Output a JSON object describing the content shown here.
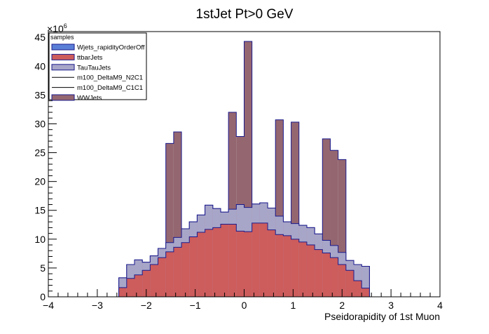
{
  "chart_data": {
    "type": "histogram",
    "title": "1stJet Pt>0 GeV",
    "xlabel": "Pseidorapidity of 1st Muon",
    "ylabel": "",
    "y_multiplier_label": "×10",
    "y_multiplier_exponent": "6",
    "xlim": [
      -4,
      4
    ],
    "ylim": [
      0,
      46
    ],
    "bin_width": 0.16,
    "xticks": [
      -4,
      -3,
      -2,
      -1,
      0,
      1,
      2,
      3,
      4
    ],
    "yticks": [
      0,
      5,
      10,
      15,
      20,
      25,
      30,
      35,
      40,
      45
    ],
    "legend": {
      "title": "samples",
      "placement": "top-left",
      "entries": [
        {
          "label": "Wjets_rapidityOrderOff",
          "style": "fill",
          "color": "#5a7fd6"
        },
        {
          "label": "ttbarJets",
          "style": "fill",
          "color": "#cd5c5c"
        },
        {
          "label": "TauTauJets",
          "style": "fill",
          "color": "#a8a6c8"
        },
        {
          "label": "m100_DeltaM9_N2C1",
          "style": "line",
          "color": "#000000"
        },
        {
          "label": "m100_DeltaM9_C1C1",
          "style": "line",
          "color": "#000000"
        },
        {
          "label": "WWJets",
          "style": "fill",
          "color": "#946670"
        }
      ]
    },
    "bin_edges": [
      -2.56,
      -2.4,
      -2.24,
      -2.08,
      -1.92,
      -1.76,
      -1.6,
      -1.44,
      -1.28,
      -1.12,
      -0.96,
      -0.8,
      -0.64,
      -0.48,
      -0.32,
      -0.16,
      0.0,
      0.16,
      0.32,
      0.48,
      0.64,
      0.8,
      0.96,
      1.12,
      1.28,
      1.44,
      1.6,
      1.76,
      1.92,
      2.08,
      2.24,
      2.4,
      2.56
    ],
    "series": [
      {
        "name": "ttbarJets",
        "color": "#cd5c5c",
        "values": [
          1.6,
          3.2,
          3.8,
          4.6,
          5.6,
          6.8,
          7.8,
          8.6,
          9.4,
          10.4,
          11.2,
          11.7,
          12.0,
          12.6,
          12.6,
          11.4,
          11.3,
          12.8,
          12.8,
          11.6,
          10.8,
          10.6,
          10.0,
          9.5,
          9.0,
          8.2,
          7.6,
          6.8,
          5.6,
          4.6,
          2.8,
          1.5
        ]
      },
      {
        "name": "TauTauJets",
        "color": "#a8a6c8",
        "cumulative": true,
        "values": [
          3.3,
          5.6,
          6.4,
          6.0,
          7.1,
          8.4,
          9.4,
          10.3,
          11.8,
          13.0,
          14.2,
          15.9,
          15.3,
          14.7,
          15.2,
          16.0,
          15.5,
          16.1,
          16.3,
          15.4,
          14.0,
          13.0,
          12.7,
          12.4,
          12.0,
          10.9,
          9.8,
          8.9,
          7.7,
          6.3,
          5.6,
          5.3
        ]
      },
      {
        "name": "WWJets",
        "color": "#946670",
        "cumulative": true,
        "values": [
          3.3,
          5.6,
          6.4,
          6.0,
          7.1,
          8.4,
          26.6,
          28.6,
          11.8,
          13.0,
          14.2,
          15.9,
          15.3,
          14.7,
          32.0,
          27.8,
          44.3,
          16.1,
          16.3,
          15.4,
          30.7,
          13.0,
          30.3,
          12.4,
          12.0,
          10.9,
          27.4,
          25.4,
          23.8,
          6.3,
          5.6,
          5.3
        ]
      }
    ]
  }
}
